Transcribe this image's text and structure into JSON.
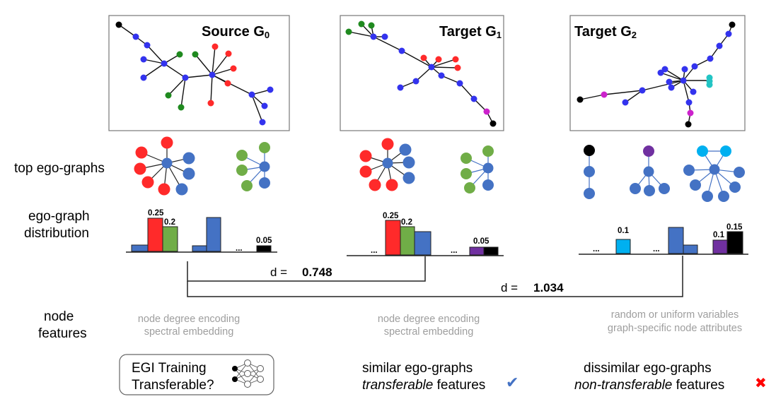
{
  "panels": {
    "source": {
      "title": "Source G",
      "sub": "0"
    },
    "target1": {
      "title": "Target G",
      "sub": "1"
    },
    "target2": {
      "title": "Target G",
      "sub": "2"
    }
  },
  "row_labels": {
    "top_ego": "top ego-graphs",
    "dist_line1": "ego-graph",
    "dist_line2": "distribution",
    "node_line1": "node",
    "node_line2": "features"
  },
  "histogram_labels": {
    "src_red": "0.25",
    "src_green": "0.2",
    "src_black": "0.05",
    "t1_red": "0.25",
    "t1_green": "0.2",
    "t1_black": "0.05",
    "t2_cyan": "0.1",
    "t2_purple": "0.1",
    "t2_black": "0.15",
    "ellipsis": "..."
  },
  "distances": {
    "d1_label": "d =",
    "d1_value": "0.748",
    "d2_label": "d =",
    "d2_value": "1.034"
  },
  "node_features": {
    "source_line1": "node degree encoding",
    "source_line2": "spectral embedding",
    "t1_line1": "node degree encoding",
    "t1_line2": "spectral embedding",
    "t2_line1": "random or uniform variables",
    "t2_line2": "graph-specific node attributes"
  },
  "bottom": {
    "egi_line1": "EGI Training",
    "egi_line2": "Transferable?",
    "similar_line1": "similar ego-graphs",
    "similar_line2_italic": "transferable",
    "similar_line2_rest": " features",
    "dissimilar_line1": "dissimilar ego-graphs",
    "dissimilar_line2_italic": "non-transferable",
    "dissimilar_line2_rest": " features",
    "check_symbol": "✔",
    "cross_symbol": "✖"
  },
  "colors": {
    "blue": "#3333ee",
    "red": "#ff2a2a",
    "green": "#1f8a1f",
    "black": "#000000",
    "magenta": "#cc22cc",
    "cyan": "#22c4c4",
    "ego_blue": "#4472c4",
    "ego_red": "#ff2a2a",
    "ego_green": "#70ad47",
    "ego_purple": "#7030a0",
    "ego_cyan": "#00b0f0",
    "check": "#4472c4",
    "cross": "#ff0000"
  }
}
